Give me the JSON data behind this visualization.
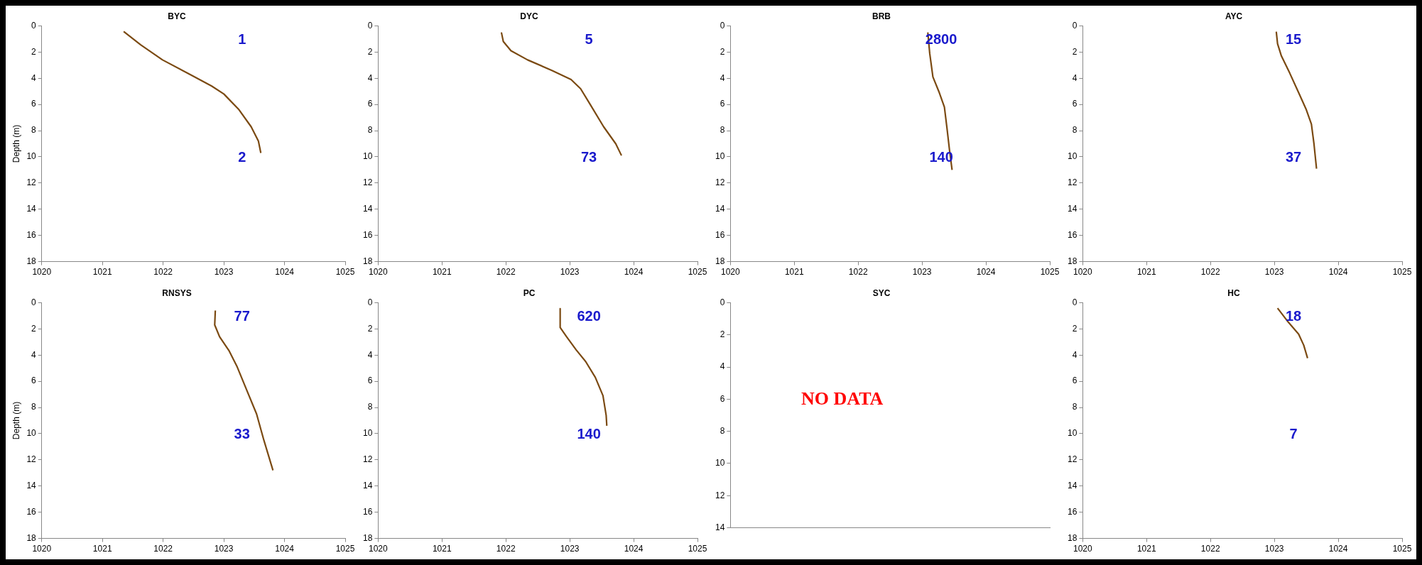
{
  "chart_data": [
    {
      "type": "line",
      "title": "BYC",
      "ylabel": "Depth (m)",
      "xlim": [
        1020,
        1025
      ],
      "xticks": [
        1020,
        1021,
        1022,
        1023,
        1024,
        1025
      ],
      "ylim": [
        18,
        0
      ],
      "yticks": [
        0,
        2,
        4,
        6,
        8,
        10,
        12,
        14,
        16,
        18
      ],
      "grid": false,
      "legend": false,
      "series": [
        {
          "color": "#7b4a12",
          "x": [
            1021.35,
            1021.63,
            1021.99,
            1022.44,
            1022.8,
            1023.0,
            1023.25,
            1023.45,
            1023.57,
            1023.61
          ],
          "values": [
            0.43,
            1.45,
            2.6,
            3.7,
            4.6,
            5.2,
            6.4,
            7.7,
            8.8,
            9.7
          ]
        }
      ],
      "annotations": [
        "1",
        "2"
      ]
    },
    {
      "type": "line",
      "title": "DYC",
      "xlim": [
        1020,
        1025
      ],
      "xticks": [
        1020,
        1021,
        1022,
        1023,
        1024,
        1025
      ],
      "ylim": [
        18,
        0
      ],
      "yticks": [
        0,
        2,
        4,
        6,
        8,
        10,
        12,
        14,
        16,
        18
      ],
      "grid": false,
      "legend": false,
      "series": [
        {
          "color": "#7b4a12",
          "x": [
            1021.93,
            1021.96,
            1022.08,
            1022.34,
            1022.72,
            1023.02,
            1023.17,
            1023.32,
            1023.53,
            1023.72,
            1023.81
          ],
          "values": [
            0.5,
            1.2,
            1.9,
            2.6,
            3.4,
            4.1,
            4.8,
            6.0,
            7.7,
            9.0,
            9.9
          ]
        }
      ],
      "annotations": [
        "5",
        "73"
      ]
    },
    {
      "type": "line",
      "title": "BRB",
      "xlim": [
        1020,
        1025
      ],
      "xticks": [
        1020,
        1021,
        1022,
        1023,
        1024,
        1025
      ],
      "ylim": [
        18,
        0
      ],
      "yticks": [
        0,
        2,
        4,
        6,
        8,
        10,
        12,
        14,
        16,
        18
      ],
      "grid": false,
      "legend": false,
      "series": [
        {
          "color": "#7b4a12",
          "x": [
            1023.09,
            1023.12,
            1023.17,
            1023.27,
            1023.35,
            1023.39,
            1023.43,
            1023.47
          ],
          "values": [
            0.5,
            2.1,
            3.9,
            5.1,
            6.2,
            7.8,
            9.5,
            11.0
          ]
        }
      ],
      "annotations": [
        "2800",
        "140"
      ]
    },
    {
      "type": "line",
      "title": "AYC",
      "xlim": [
        1020,
        1025
      ],
      "xticks": [
        1020,
        1021,
        1022,
        1023,
        1024,
        1025
      ],
      "ylim": [
        18,
        0
      ],
      "yticks": [
        0,
        2,
        4,
        6,
        8,
        10,
        12,
        14,
        16,
        18
      ],
      "grid": false,
      "legend": false,
      "series": [
        {
          "color": "#7b4a12",
          "x": [
            1023.03,
            1023.05,
            1023.11,
            1023.24,
            1023.38,
            1023.5,
            1023.58,
            1023.62,
            1023.66
          ],
          "values": [
            0.44,
            1.37,
            2.3,
            3.6,
            5.1,
            6.4,
            7.5,
            9.0,
            10.9
          ]
        }
      ],
      "annotations": [
        "15",
        "37"
      ]
    },
    {
      "type": "line",
      "title": "RNSYS",
      "ylabel": "Depth (m)",
      "xlim": [
        1020,
        1025
      ],
      "xticks": [
        1020,
        1021,
        1022,
        1023,
        1024,
        1025
      ],
      "ylim": [
        18,
        0
      ],
      "yticks": [
        0,
        2,
        4,
        6,
        8,
        10,
        12,
        14,
        16,
        18
      ],
      "grid": false,
      "legend": false,
      "series": [
        {
          "color": "#7b4a12",
          "x": [
            1022.86,
            1022.85,
            1022.93,
            1023.09,
            1023.22,
            1023.38,
            1023.54,
            1023.66,
            1023.81
          ],
          "values": [
            0.6,
            1.7,
            2.6,
            3.7,
            4.9,
            6.7,
            8.5,
            10.5,
            12.8
          ]
        }
      ],
      "annotations": [
        "77",
        "33"
      ]
    },
    {
      "type": "line",
      "title": "PC",
      "xlim": [
        1020,
        1025
      ],
      "xticks": [
        1020,
        1021,
        1022,
        1023,
        1024,
        1025
      ],
      "ylim": [
        18,
        0
      ],
      "yticks": [
        0,
        2,
        4,
        6,
        8,
        10,
        12,
        14,
        16,
        18
      ],
      "grid": false,
      "legend": false,
      "series": [
        {
          "color": "#7b4a12",
          "x": [
            1022.85,
            1022.85,
            1022.95,
            1023.1,
            1023.25,
            1023.4,
            1023.52,
            1023.57,
            1023.58
          ],
          "values": [
            0.46,
            1.9,
            2.6,
            3.6,
            4.5,
            5.7,
            7.1,
            8.6,
            9.4
          ]
        }
      ],
      "annotations": [
        "620",
        "140"
      ]
    },
    {
      "type": "line",
      "title": "SYC",
      "categories": [
        null
      ],
      "ylim": [
        14,
        0
      ],
      "yticks": [
        0,
        2,
        4,
        6,
        8,
        10,
        12,
        14
      ],
      "grid": false,
      "legend": false,
      "annotations": [
        "NO DATA"
      ]
    },
    {
      "type": "line",
      "title": "HC",
      "xlim": [
        1020,
        1025
      ],
      "xticks": [
        1020,
        1021,
        1022,
        1023,
        1024,
        1025
      ],
      "ylim": [
        18,
        0
      ],
      "yticks": [
        0,
        2,
        4,
        6,
        8,
        10,
        12,
        14,
        16,
        18
      ],
      "grid": false,
      "legend": false,
      "series": [
        {
          "color": "#7b4a12",
          "x": [
            1023.05,
            1023.22,
            1023.38,
            1023.46,
            1023.52
          ],
          "values": [
            0.42,
            1.5,
            2.4,
            3.25,
            4.24
          ]
        }
      ],
      "annotations": [
        "18",
        "7"
      ]
    }
  ]
}
